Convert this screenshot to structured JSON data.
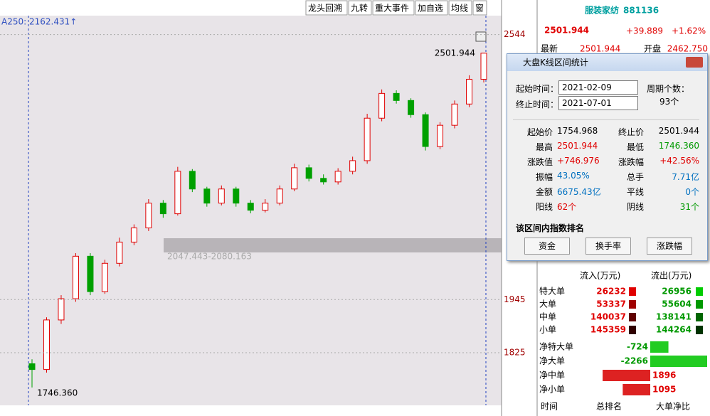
{
  "toolbar": [
    "龙头回溯",
    "九转",
    "重大事件",
    "加自选",
    "均线",
    "窗"
  ],
  "chart": {
    "ma_label": "A250: 2162.431↑",
    "high_label": "2501.944",
    "low_label": "1746.360",
    "band_label": "2047.443-2080.163",
    "ylim": [
      1706,
      2590
    ],
    "yticks": [
      2544,
      1945,
      1825
    ],
    "candles": [
      [
        1800,
        1810,
        1746.36,
        1787
      ],
      [
        1787,
        1905,
        1780,
        1899
      ],
      [
        1899,
        1955,
        1890,
        1947
      ],
      [
        1947,
        2050,
        1940,
        2043
      ],
      [
        2043,
        2050,
        1955,
        1963
      ],
      [
        1963,
        2035,
        1958,
        2027
      ],
      [
        2027,
        2085,
        2020,
        2075
      ],
      [
        2075,
        2115,
        2068,
        2107
      ],
      [
        2107,
        2172,
        2100,
        2163
      ],
      [
        2163,
        2170,
        2130,
        2139
      ],
      [
        2139,
        2245,
        2135,
        2235
      ],
      [
        2235,
        2240,
        2188,
        2195
      ],
      [
        2195,
        2200,
        2155,
        2163
      ],
      [
        2163,
        2203,
        2158,
        2195
      ],
      [
        2195,
        2200,
        2155,
        2163
      ],
      [
        2163,
        2170,
        2140,
        2147
      ],
      [
        2147,
        2172,
        2142,
        2163
      ],
      [
        2163,
        2203,
        2158,
        2195
      ],
      [
        2195,
        2252,
        2190,
        2243
      ],
      [
        2243,
        2250,
        2212,
        2219
      ],
      [
        2219,
        2228,
        2205,
        2211
      ],
      [
        2211,
        2242,
        2205,
        2235
      ],
      [
        2235,
        2268,
        2228,
        2259
      ],
      [
        2259,
        2365,
        2252,
        2355
      ],
      [
        2355,
        2420,
        2348,
        2411
      ],
      [
        2411,
        2418,
        2388,
        2395
      ],
      [
        2395,
        2400,
        2356,
        2363
      ],
      [
        2363,
        2368,
        2282,
        2291
      ],
      [
        2291,
        2346,
        2285,
        2339
      ],
      [
        2339,
        2395,
        2332,
        2387
      ],
      [
        2387,
        2452,
        2380,
        2443
      ],
      [
        2443,
        2501.944,
        2436,
        2501.944
      ]
    ]
  },
  "quote": {
    "name": "服装家纺",
    "code": "881136",
    "price": "2501.944",
    "change": "+39.889",
    "pct": "+1.62%",
    "row_label": "最新",
    "row_price": "2501.944",
    "open_label": "开盘",
    "open": "2462.750"
  },
  "dialog": {
    "title": "大盘K线区间统计",
    "start_label": "起始时间：",
    "start": "2021-02-09",
    "end_label": "终止时间：",
    "end": "2021-07-01",
    "period_label": "周期个数：",
    "period": "93个",
    "stats": [
      [
        "起始价",
        "1754.968",
        "终止价",
        "2501.944"
      ],
      [
        "最高",
        "2501.944",
        "最低",
        "1746.360"
      ],
      [
        "涨跌值",
        "+746.976",
        "涨跌幅",
        "+42.56%"
      ],
      [
        "振幅",
        "43.05%",
        "总手",
        "7.71亿"
      ],
      [
        "金额",
        "6675.43亿",
        "平线",
        "0个"
      ],
      [
        "阳线",
        "62个",
        "阴线",
        "31个"
      ]
    ],
    "rank_title": "该区间内指数排名",
    "buttons": [
      "资金",
      "换手率",
      "涨跌幅"
    ]
  },
  "flow": {
    "in_header": "流入(万元)",
    "out_header": "流出(万元)",
    "rows": [
      [
        "特大单",
        26232,
        26956
      ],
      [
        "大单",
        53337,
        55604
      ],
      [
        "中单",
        140037,
        138141
      ],
      [
        "小单",
        145359,
        144264
      ]
    ],
    "net": [
      [
        "净特大单",
        -724
      ],
      [
        "净大单",
        -2266
      ],
      [
        "净中单",
        1896
      ],
      [
        "净小单",
        1095
      ]
    ],
    "footer": [
      "时间",
      "总排名",
      "大单净比"
    ]
  }
}
